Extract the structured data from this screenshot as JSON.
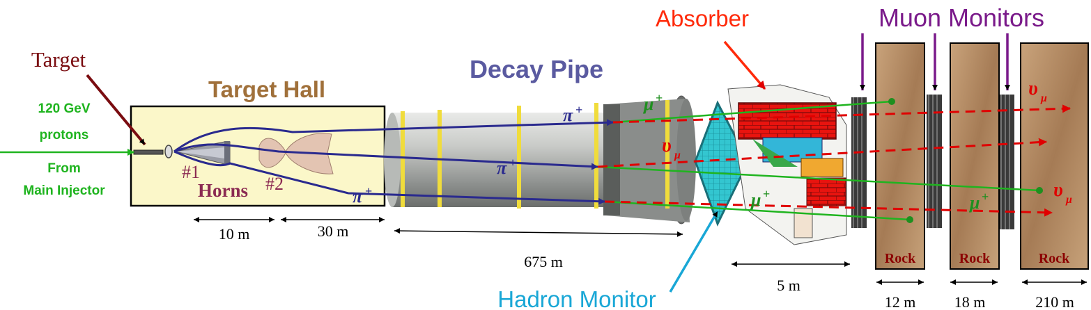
{
  "labels": {
    "target": "Target",
    "target_hall": "Target Hall",
    "beam_energy": "120 GeV",
    "beam_particle": "protons",
    "beam_source_1": "From",
    "beam_source_2": "Main Injector",
    "horn1": "#1",
    "horns": "Horns",
    "horn2": "#2",
    "decay_pipe": "Decay Pipe",
    "absorber": "Absorber",
    "muon_monitors": "Muon Monitors",
    "hadron_monitor": "Hadron Monitor",
    "rock_1": "Rock",
    "rock_2": "Rock",
    "rock_3": "Rock"
  },
  "particles": {
    "pion": "π",
    "pion_charge": "+",
    "muon": "μ",
    "muon_charge": "+",
    "neutrino": "υ",
    "neutrino_sub": "μ"
  },
  "dimensions": {
    "d_10m": "10 m",
    "d_30m": "30 m",
    "d_675m": "675 m",
    "d_5m": "5 m",
    "d_12m": "12 m",
    "d_18m": "18 m",
    "d_210m": "210 m"
  },
  "colors": {
    "target_label": "#7a0c10",
    "hall_title": "#a0703a",
    "hall_fill": "#fbf7c9",
    "proton": "#1fb41f",
    "pion": "#2a2a8e",
    "muon": "#1f8f1f",
    "neutrino": "#e00000",
    "decay_title": "#5a5aa0",
    "absorber_label": "#ff2a0a",
    "muon_monitor_label": "#7a1a8a",
    "hadron_monitor_label": "#19a7d6",
    "rock_fill": "#b48c64",
    "rock_text": "#8b0000",
    "horn_label": "#8b2a52"
  }
}
